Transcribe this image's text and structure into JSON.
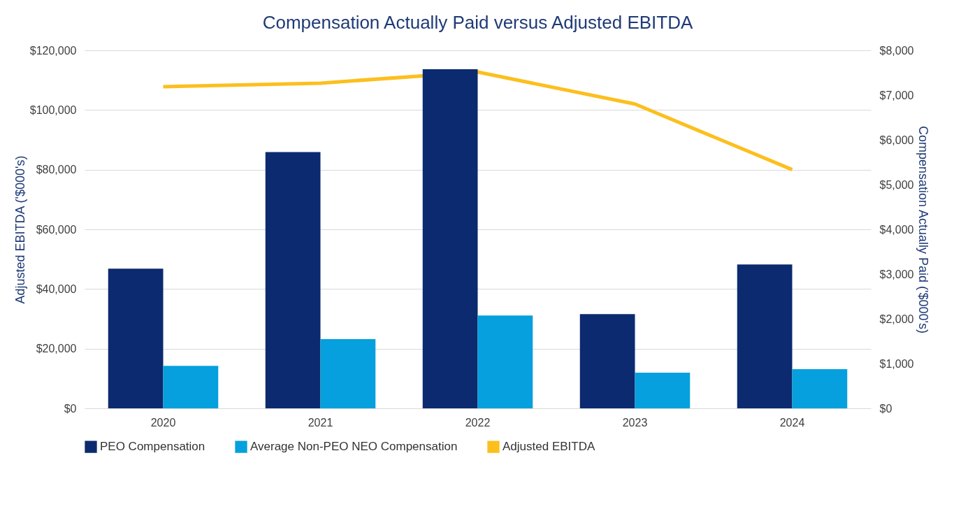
{
  "chart_data": {
    "type": "bar",
    "title": "Compensation Actually Paid versus Adjusted EBITDA",
    "ylabel": "Adjusted EBITDA ('$000's)",
    "y2label": "Compensation Actually Paid ('$000's)",
    "categories": [
      "2020",
      "2021",
      "2022",
      "2023",
      "2024"
    ],
    "series": [
      {
        "name": "PEO Compensation",
        "color": "#0b2a6f",
        "axis": "y2",
        "values": [
          3120,
          5725,
          7580,
          2105,
          3215
        ]
      },
      {
        "name": "Average Non-PEO NEO Compensation",
        "color": "#05a0dd",
        "axis": "y2",
        "values": [
          950,
          1545,
          2075,
          795,
          875
        ]
      },
      {
        "name": "Adjusted EBITDA",
        "type": "line",
        "color": "#fcbf1e",
        "values": [
          107840,
          109010,
          112750,
          102000,
          80000
        ]
      }
    ],
    "ylim": [
      0,
      120000
    ],
    "yticks": [
      {
        "value": 0,
        "label": "$0"
      },
      {
        "value": 20000,
        "label": "$20,000"
      },
      {
        "value": 40000,
        "label": "$40,000"
      },
      {
        "value": 60000,
        "label": "$60,000"
      },
      {
        "value": 80000,
        "label": "$80,000"
      },
      {
        "value": 100000,
        "label": "$100,000"
      },
      {
        "value": 120000,
        "label": "$120,000"
      }
    ],
    "y2lim": [
      0,
      8000
    ],
    "y2ticks": [
      {
        "value": 0,
        "label": "$0"
      },
      {
        "value": 1000,
        "label": "$1,000"
      },
      {
        "value": 2000,
        "label": "$2,000"
      },
      {
        "value": 3000,
        "label": "$3,000"
      },
      {
        "value": 4000,
        "label": "$4,000"
      },
      {
        "value": 5000,
        "label": "$5,000"
      },
      {
        "value": 6000,
        "label": "$6,000"
      },
      {
        "value": 7000,
        "label": "$7,000"
      },
      {
        "value": 8000,
        "label": "$8,000"
      }
    ],
    "grid": "y",
    "legend": "bottom"
  }
}
